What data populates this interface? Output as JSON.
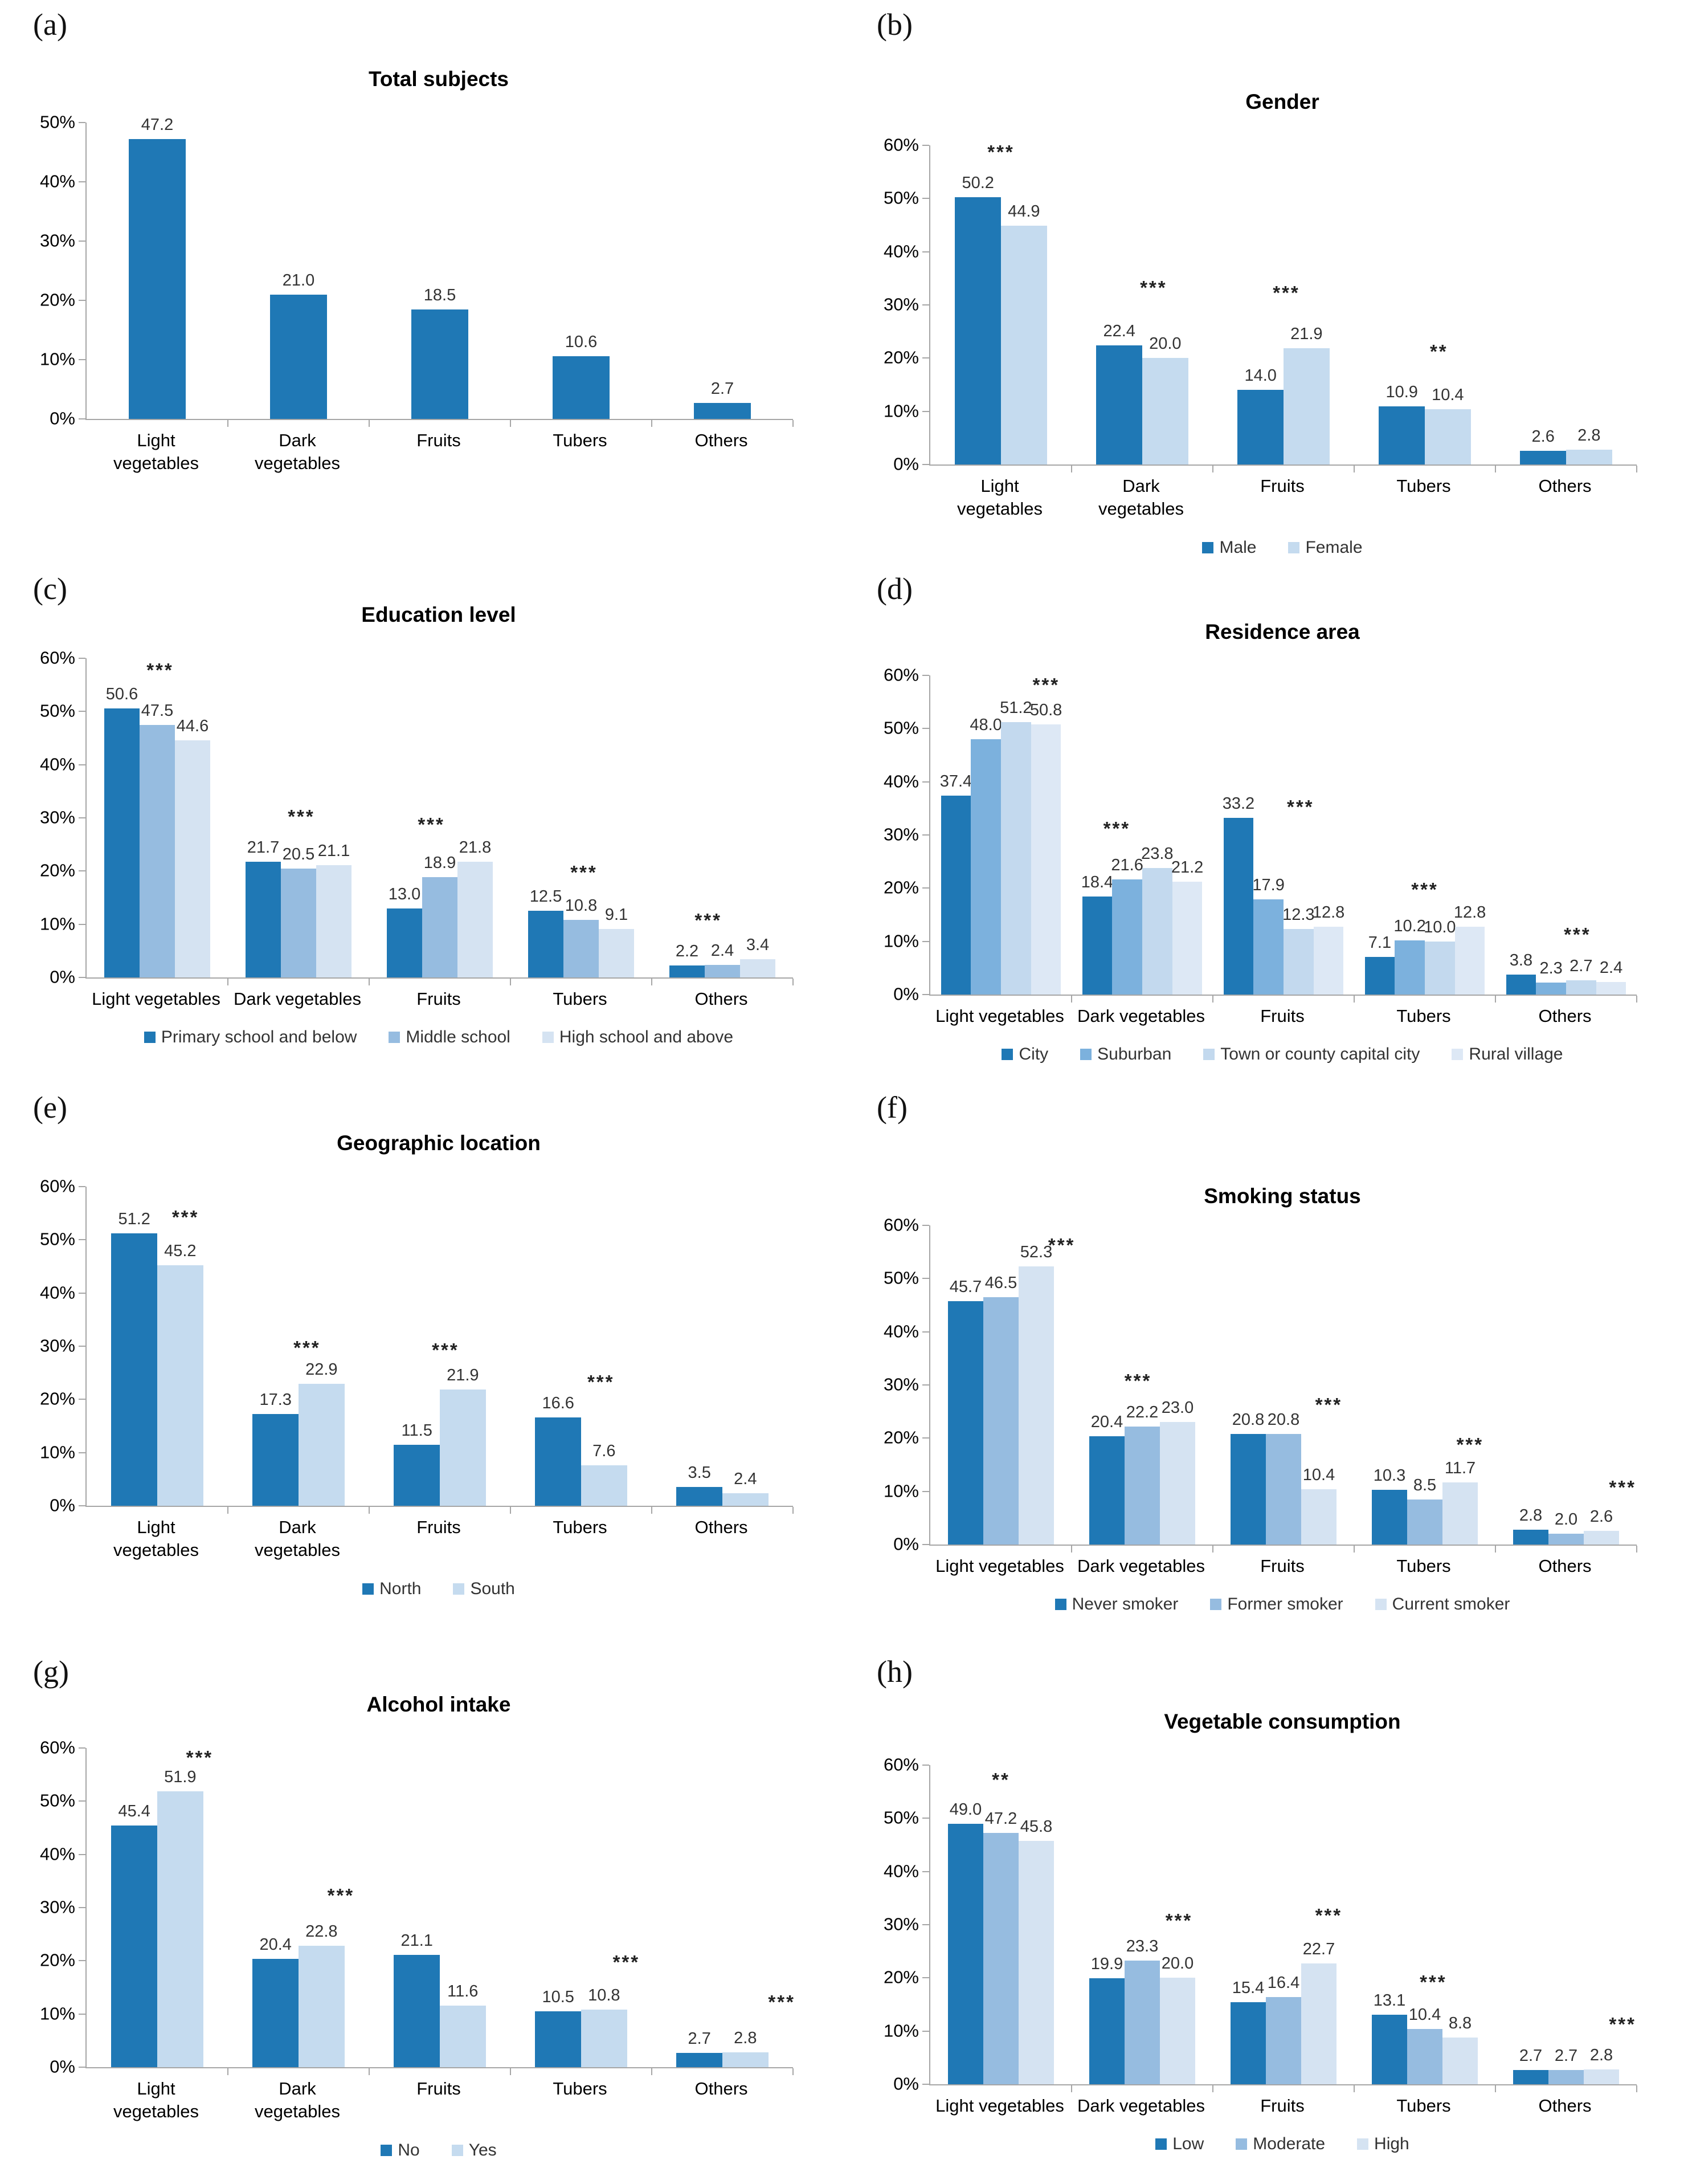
{
  "figure": {
    "description_categories": [
      "Light\nvegetables",
      "Dark\nvegetables",
      "Fruits",
      "Tubers",
      "Others"
    ]
  },
  "chart_data": [
    {
      "id": "a",
      "letter": "(a)",
      "type": "bar",
      "title": "Total subjects",
      "categories": [
        "Light\nvegetables",
        "Dark\nvegetables",
        "Fruits",
        "Tubers",
        "Others"
      ],
      "ymax": 50,
      "yticks": [
        "50%",
        "40%",
        "30%",
        "20%",
        "10%",
        "0%"
      ],
      "grid": false,
      "legend_position": "none",
      "series": [
        {
          "name": null,
          "color": "#1F78B5",
          "values": [
            47.2,
            21.0,
            18.5,
            10.6,
            2.7
          ]
        }
      ],
      "sig": [
        null,
        null,
        null,
        null,
        null
      ]
    },
    {
      "id": "b",
      "letter": "(b)",
      "type": "bar",
      "title": "Gender",
      "categories": [
        "Light\nvegetables",
        "Dark\nvegetables",
        "Fruits",
        "Tubers",
        "Others"
      ],
      "ymax": 60,
      "yticks": [
        "60%",
        "50%",
        "40%",
        "30%",
        "20%",
        "10%",
        "0%"
      ],
      "grid": false,
      "legend_position": "bottom",
      "series": [
        {
          "name": "Male",
          "color": "#1F78B5",
          "values": [
            50.2,
            22.4,
            14.0,
            10.9,
            2.6
          ]
        },
        {
          "name": "Female",
          "color": "#C5DBEF",
          "values": [
            44.9,
            20.0,
            21.9,
            10.4,
            2.8
          ]
        }
      ],
      "sig": [
        {
          "text": "***",
          "x": 0.5,
          "y": 57.0
        },
        {
          "text": "***",
          "x": 0.58,
          "y": 31.5
        },
        {
          "text": "***",
          "x": 0.52,
          "y": 30.5
        },
        {
          "text": "**",
          "x": 0.6,
          "y": 19.5
        },
        null
      ]
    },
    {
      "id": "c",
      "letter": "(c)",
      "type": "bar",
      "title": "Education level",
      "categories": [
        "Light vegetables",
        "Dark vegetables",
        "Fruits",
        "Tubers",
        "Others"
      ],
      "ymax": 60,
      "yticks": [
        "60%",
        "50%",
        "40%",
        "30%",
        "20%",
        "10%",
        "0%"
      ],
      "grid": false,
      "legend_position": "bottom",
      "series": [
        {
          "name": "Primary school and below",
          "color": "#1F78B5",
          "values": [
            50.6,
            21.7,
            13.0,
            12.5,
            2.2
          ]
        },
        {
          "name": "Middle school",
          "color": "#96BCE0",
          "values": [
            47.5,
            20.5,
            18.9,
            10.8,
            2.4
          ]
        },
        {
          "name": "High school and above",
          "color": "#D5E3F2",
          "values": [
            44.6,
            21.1,
            21.8,
            9.1,
            3.4
          ]
        }
      ],
      "sig": [
        {
          "text": "***",
          "x": 0.52,
          "y": 56.0
        },
        {
          "text": "***",
          "x": 0.52,
          "y": 28.5
        },
        {
          "text": "***",
          "x": 0.44,
          "y": 27.0
        },
        {
          "text": "***",
          "x": 0.52,
          "y": 18.0
        },
        {
          "text": "***",
          "x": 0.4,
          "y": 9.0
        }
      ]
    },
    {
      "id": "d",
      "letter": "(d)",
      "type": "bar",
      "title": "Residence area",
      "categories": [
        "Light vegetables",
        "Dark vegetables",
        "Fruits",
        "Tubers",
        "Others"
      ],
      "ymax": 60,
      "yticks": [
        "60%",
        "50%",
        "40%",
        "30%",
        "20%",
        "10%",
        "0%"
      ],
      "grid": false,
      "legend_position": "bottom",
      "series": [
        {
          "name": "City",
          "color": "#1F78B5",
          "values": [
            37.4,
            18.4,
            33.2,
            7.1,
            3.8
          ]
        },
        {
          "name": "Suburban",
          "color": "#7CB1DD",
          "values": [
            48.0,
            21.6,
            17.9,
            10.2,
            2.3
          ]
        },
        {
          "name": "Town or county capital city",
          "color": "#C3D9EE",
          "values": [
            51.2,
            23.8,
            12.3,
            10.0,
            2.7
          ]
        },
        {
          "name": "Rural village",
          "color": "#DDE8F5",
          "values": [
            50.8,
            21.2,
            12.8,
            12.8,
            2.4
          ]
        }
      ],
      "sig": [
        {
          "text": "***",
          "x": 0.82,
          "y": 56.5
        },
        {
          "text": "***",
          "x": 0.32,
          "y": 29.5
        },
        {
          "text": "***",
          "x": 0.62,
          "y": 33.5
        },
        {
          "text": "***",
          "x": 0.5,
          "y": 18.0
        },
        {
          "text": "***",
          "x": 0.58,
          "y": 9.5
        }
      ]
    },
    {
      "id": "e",
      "letter": "(e)",
      "type": "bar",
      "title": "Geographic location",
      "categories": [
        "Light\nvegetables",
        "Dark\nvegetables",
        "Fruits",
        "Tubers",
        "Others"
      ],
      "ymax": 60,
      "yticks": [
        "60%",
        "50%",
        "40%",
        "30%",
        "20%",
        "10%",
        "0%"
      ],
      "grid": false,
      "legend_position": "bottom",
      "series": [
        {
          "name": "North",
          "color": "#1F78B5",
          "values": [
            51.2,
            17.3,
            11.5,
            16.6,
            3.5
          ]
        },
        {
          "name": "South",
          "color": "#C5DBEF",
          "values": [
            45.2,
            22.9,
            21.9,
            7.6,
            2.4
          ]
        }
      ],
      "sig": [
        {
          "text": "***",
          "x": 0.7,
          "y": 52.5
        },
        {
          "text": "***",
          "x": 0.56,
          "y": 28.0
        },
        {
          "text": "***",
          "x": 0.54,
          "y": 27.5
        },
        {
          "text": "***",
          "x": 0.64,
          "y": 21.5
        },
        null
      ]
    },
    {
      "id": "f",
      "letter": "(f)",
      "type": "bar",
      "title": "Smoking status",
      "categories": [
        "Light vegetables",
        "Dark vegetables",
        "Fruits",
        "Tubers",
        "Others"
      ],
      "ymax": 60,
      "yticks": [
        "60%",
        "50%",
        "40%",
        "30%",
        "20%",
        "10%",
        "0%"
      ],
      "grid": false,
      "legend_position": "bottom",
      "series": [
        {
          "name": "Never smoker",
          "color": "#1F78B5",
          "values": [
            45.7,
            20.4,
            20.8,
            10.3,
            2.8
          ]
        },
        {
          "name": "Former smoker",
          "color": "#96BCE0",
          "values": [
            46.5,
            22.2,
            20.8,
            8.5,
            2.0
          ]
        },
        {
          "name": "Current smoker",
          "color": "#D5E3F2",
          "values": [
            52.3,
            23.0,
            10.4,
            11.7,
            2.6
          ]
        }
      ],
      "sig": [
        {
          "text": "***",
          "x": 0.93,
          "y": 54.5
        },
        {
          "text": "***",
          "x": 0.47,
          "y": 29.0
        },
        {
          "text": "***",
          "x": 0.82,
          "y": 24.5
        },
        {
          "text": "***",
          "x": 0.82,
          "y": 17.0
        },
        {
          "text": "***",
          "x": 0.9,
          "y": 9.0
        }
      ]
    },
    {
      "id": "g",
      "letter": "(g)",
      "type": "bar",
      "title": "Alcohol intake",
      "categories": [
        "Light\nvegetables",
        "Dark\nvegetables",
        "Fruits",
        "Tubers",
        "Others"
      ],
      "ymax": 60,
      "yticks": [
        "60%",
        "50%",
        "40%",
        "30%",
        "20%",
        "10%",
        "0%"
      ],
      "grid": false,
      "legend_position": "bottom",
      "series": [
        {
          "name": "No",
          "color": "#1F78B5",
          "values": [
            45.4,
            20.4,
            21.1,
            10.5,
            2.7
          ]
        },
        {
          "name": "Yes",
          "color": "#C5DBEF",
          "values": [
            51.9,
            22.8,
            11.6,
            10.8,
            2.8
          ]
        }
      ],
      "sig": [
        {
          "text": "***",
          "x": 0.8,
          "y": 56.5
        },
        {
          "text": "***",
          "x": 0.8,
          "y": 30.5
        },
        null,
        {
          "text": "***",
          "x": 0.82,
          "y": 18.0
        },
        {
          "text": "***",
          "x": 0.92,
          "y": 10.5
        }
      ]
    },
    {
      "id": "h",
      "letter": "(h)",
      "type": "bar",
      "title": "Vegetable consumption",
      "categories": [
        "Light vegetables",
        "Dark vegetables",
        "Fruits",
        "Tubers",
        "Others"
      ],
      "ymax": 60,
      "yticks": [
        "60%",
        "50%",
        "40%",
        "30%",
        "20%",
        "10%",
        "0%"
      ],
      "grid": false,
      "legend_position": "bottom",
      "series": [
        {
          "name": "Low",
          "color": "#1F78B5",
          "values": [
            49.0,
            19.9,
            15.4,
            13.1,
            2.7
          ]
        },
        {
          "name": "Moderate",
          "color": "#96BCE0",
          "values": [
            47.2,
            23.3,
            16.4,
            10.4,
            2.7
          ]
        },
        {
          "name": "High",
          "color": "#D5E3F2",
          "values": [
            45.8,
            20.0,
            22.7,
            8.8,
            2.8
          ]
        }
      ],
      "sig": [
        {
          "text": "**",
          "x": 0.5,
          "y": 55.5
        },
        {
          "text": "***",
          "x": 0.76,
          "y": 29.0
        },
        {
          "text": "***",
          "x": 0.82,
          "y": 30.0
        },
        {
          "text": "***",
          "x": 0.56,
          "y": 17.5
        },
        {
          "text": "***",
          "x": 0.9,
          "y": 9.5
        }
      ]
    }
  ]
}
